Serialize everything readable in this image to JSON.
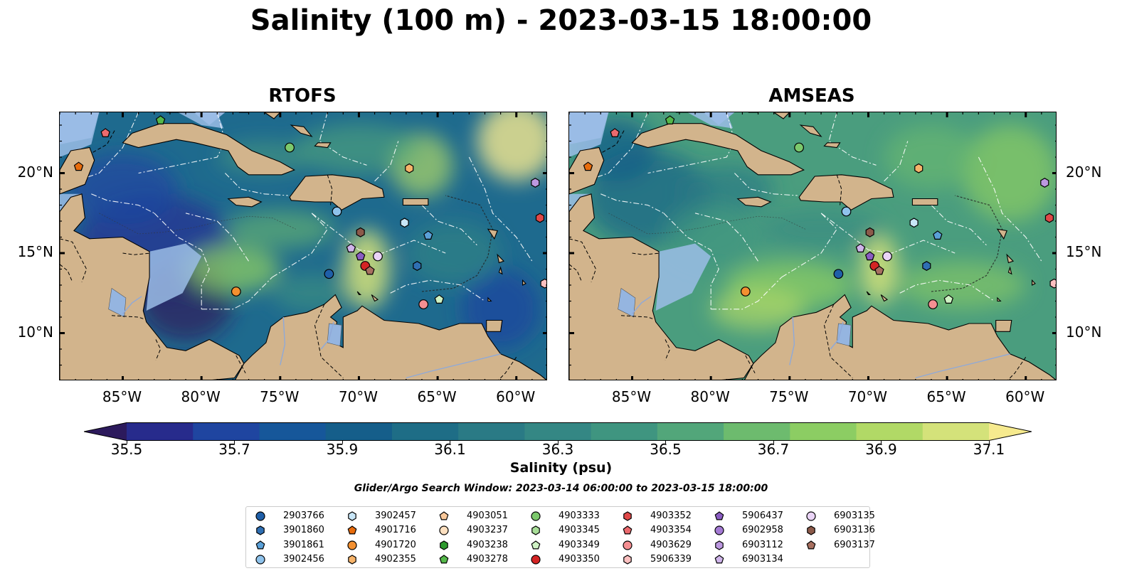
{
  "title": "Salinity (100 m) - 2023-03-15 18:00:00",
  "panels": [
    {
      "title": "RTOFS",
      "model": "rtofs"
    },
    {
      "title": "AMSEAS",
      "model": "amseas"
    }
  ],
  "axes": {
    "lon_ticks": [
      {
        "value": -85,
        "label": "85°W"
      },
      {
        "value": -80,
        "label": "80°W"
      },
      {
        "value": -75,
        "label": "75°W"
      },
      {
        "value": -70,
        "label": "70°W"
      },
      {
        "value": -65,
        "label": "65°W"
      },
      {
        "value": -60,
        "label": "60°W"
      }
    ],
    "lat_ticks": [
      {
        "value": 20,
        "label": "20°N"
      },
      {
        "value": 15,
        "label": "15°N"
      },
      {
        "value": 10,
        "label": "10°N"
      }
    ],
    "lon_range": [
      -89,
      -58
    ],
    "lat_range": [
      7,
      23.8
    ]
  },
  "colorbar": {
    "label": "Salinity (psu)",
    "ticks": [
      "35.5",
      "35.7",
      "35.9",
      "36.1",
      "36.3",
      "36.5",
      "36.7",
      "36.9",
      "37.1"
    ],
    "range": [
      35.5,
      37.1
    ],
    "colors": [
      "#2c1a5c",
      "#272b8c",
      "#1f45a0",
      "#16579a",
      "#155e8a",
      "#1e6d86",
      "#2a7a85",
      "#348784",
      "#3f9580",
      "#52a67a",
      "#6dbb6e",
      "#8ccd63",
      "#b1d966",
      "#d4e27a",
      "#f6ea8e"
    ]
  },
  "search_window": "Glider/Argo Search Window: 2023-03-14 06:00:00 to 2023-03-15 18:00:00",
  "platforms": [
    {
      "id": "2903766",
      "marker": "circle",
      "color": "#1f5fa8"
    },
    {
      "id": "3901860",
      "marker": "hexagon",
      "color": "#2f6fb3"
    },
    {
      "id": "3901861",
      "marker": "pentagon",
      "color": "#5aa0d8"
    },
    {
      "id": "3902456",
      "marker": "circle",
      "color": "#8fc3ec"
    },
    {
      "id": "3902457",
      "marker": "hexagon",
      "color": "#c8e6f7"
    },
    {
      "id": "4901716",
      "marker": "pentagon",
      "color": "#e86c0c"
    },
    {
      "id": "4901720",
      "marker": "circle",
      "color": "#f39030"
    },
    {
      "id": "4902355",
      "marker": "hexagon",
      "color": "#f7b46a"
    },
    {
      "id": "4903051",
      "marker": "pentagon",
      "color": "#f9c89a"
    },
    {
      "id": "4903237",
      "marker": "circle",
      "color": "#fde0c0"
    },
    {
      "id": "4903238",
      "marker": "hexagon",
      "color": "#2e9a2e"
    },
    {
      "id": "4903278",
      "marker": "pentagon",
      "color": "#55b84a"
    },
    {
      "id": "4903333",
      "marker": "circle",
      "color": "#7cc96c"
    },
    {
      "id": "4903345",
      "marker": "hexagon",
      "color": "#a8de98"
    },
    {
      "id": "4903349",
      "marker": "pentagon",
      "color": "#cff2c4"
    },
    {
      "id": "4903350",
      "marker": "circle",
      "color": "#d42424"
    },
    {
      "id": "4903352",
      "marker": "hexagon",
      "color": "#e04848"
    },
    {
      "id": "4903354",
      "marker": "pentagon",
      "color": "#ec6a6e"
    },
    {
      "id": "4903629",
      "marker": "circle",
      "color": "#f58f92"
    },
    {
      "id": "5906339",
      "marker": "hexagon",
      "color": "#fcc0c0"
    },
    {
      "id": "5906437",
      "marker": "pentagon",
      "color": "#8a5cc2"
    },
    {
      "id": "6902958",
      "marker": "circle",
      "color": "#a47ad4"
    },
    {
      "id": "6903112",
      "marker": "hexagon",
      "color": "#bc98e0"
    },
    {
      "id": "6903134",
      "marker": "pentagon",
      "color": "#cfb4ea"
    },
    {
      "id": "6903135",
      "marker": "circle",
      "color": "#ead4f6"
    },
    {
      "id": "6903136",
      "marker": "hexagon",
      "color": "#8c5a4a"
    },
    {
      "id": "6903137",
      "marker": "pentagon",
      "color": "#a87060"
    }
  ],
  "observations": [
    {
      "id": "4901716",
      "lon": -87.8,
      "lat": 20.4
    },
    {
      "id": "4903354",
      "lon": -86.1,
      "lat": 22.5
    },
    {
      "id": "4903278",
      "lon": -82.6,
      "lat": 23.3
    },
    {
      "id": "4903333",
      "lon": -74.4,
      "lat": 21.6
    },
    {
      "id": "4902355",
      "lon": -66.8,
      "lat": 20.3
    },
    {
      "id": "6903112",
      "lon": -58.8,
      "lat": 19.4
    },
    {
      "id": "4903352",
      "lon": -58.5,
      "lat": 17.2
    },
    {
      "id": "3902456",
      "lon": -71.4,
      "lat": 17.6
    },
    {
      "id": "3902457",
      "lon": -67.1,
      "lat": 16.9
    },
    {
      "id": "3901861",
      "lon": -65.6,
      "lat": 16.1
    },
    {
      "id": "6903136",
      "lon": -69.9,
      "lat": 16.3
    },
    {
      "id": "6903134",
      "lon": -70.5,
      "lat": 15.3
    },
    {
      "id": "5906437",
      "lon": -69.9,
      "lat": 14.8
    },
    {
      "id": "6903135",
      "lon": -68.8,
      "lat": 14.8
    },
    {
      "id": "4903350",
      "lon": -69.6,
      "lat": 14.2
    },
    {
      "id": "6903137",
      "lon": -69.3,
      "lat": 13.9
    },
    {
      "id": "3901860",
      "lon": -66.3,
      "lat": 14.2
    },
    {
      "id": "2903766",
      "lon": -71.9,
      "lat": 13.7
    },
    {
      "id": "4901720",
      "lon": -77.8,
      "lat": 12.6
    },
    {
      "id": "4903349",
      "lon": -64.9,
      "lat": 12.1
    },
    {
      "id": "4903629",
      "lon": -65.9,
      "lat": 11.8
    },
    {
      "id": "5906339",
      "lon": -58.2,
      "lat": 13.1
    }
  ]
}
